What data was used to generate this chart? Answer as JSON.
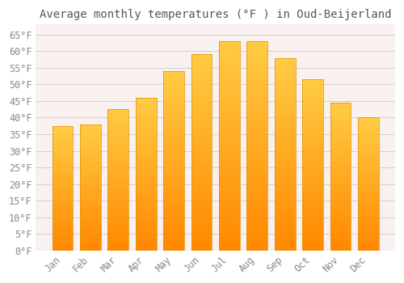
{
  "title": "Average monthly temperatures (°F ) in Oud-Beijerland",
  "months": [
    "Jan",
    "Feb",
    "Mar",
    "Apr",
    "May",
    "Jun",
    "Jul",
    "Aug",
    "Sep",
    "Oct",
    "Nov",
    "Dec"
  ],
  "values": [
    37.5,
    38,
    42.5,
    46,
    54,
    59,
    63,
    63,
    58,
    51.5,
    44.5,
    40
  ],
  "bar_color_top": "#FFB300",
  "bar_color_bottom": "#FF8C00",
  "bar_color_face": "#FFAA00",
  "bar_color_edge": "#E09000",
  "background_color": "#FFFFFF",
  "plot_bg_color": "#F9F0F0",
  "grid_color": "#DDCCCC",
  "yticks": [
    0,
    5,
    10,
    15,
    20,
    25,
    30,
    35,
    40,
    45,
    50,
    55,
    60,
    65
  ],
  "ylim": [
    0,
    68
  ],
  "title_fontsize": 10,
  "tick_fontsize": 8.5,
  "tick_label_color": "#888888",
  "title_color": "#555555"
}
